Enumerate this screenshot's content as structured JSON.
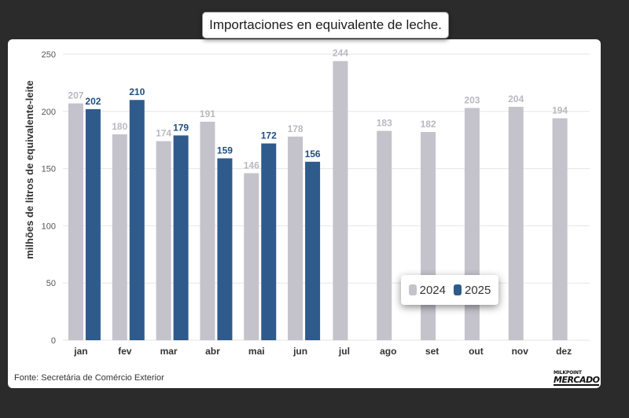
{
  "title": "Importaciones en equivalente de leche.",
  "source": "Fonte: Secretária de Comércio Exterior",
  "logo": {
    "line1": "MILKPOINT",
    "line2": "MERCADO"
  },
  "colors": {
    "series_2024": "#c4c3cc",
    "series_2025": "#2e5b8c",
    "label_2024": "#b9b8c0",
    "label_2025": "#1f4e7f"
  },
  "chart_data": {
    "type": "bar",
    "categories": [
      "jan",
      "fev",
      "mar",
      "abr",
      "mai",
      "jun",
      "jul",
      "ago",
      "set",
      "out",
      "nov",
      "dez"
    ],
    "series": [
      {
        "name": "2024",
        "values": [
          207,
          180,
          174,
          191,
          146,
          178,
          244,
          183,
          182,
          203,
          204,
          194
        ]
      },
      {
        "name": "2025",
        "values": [
          202,
          210,
          179,
          159,
          172,
          156,
          null,
          null,
          null,
          null,
          null,
          null
        ]
      }
    ],
    "ylabel": "milhões de litros de equivalente-leite",
    "ylim": [
      0,
      250
    ],
    "yticks": [
      0,
      50,
      100,
      150,
      200,
      250
    ],
    "grid": true,
    "legend": "bottom-right"
  }
}
